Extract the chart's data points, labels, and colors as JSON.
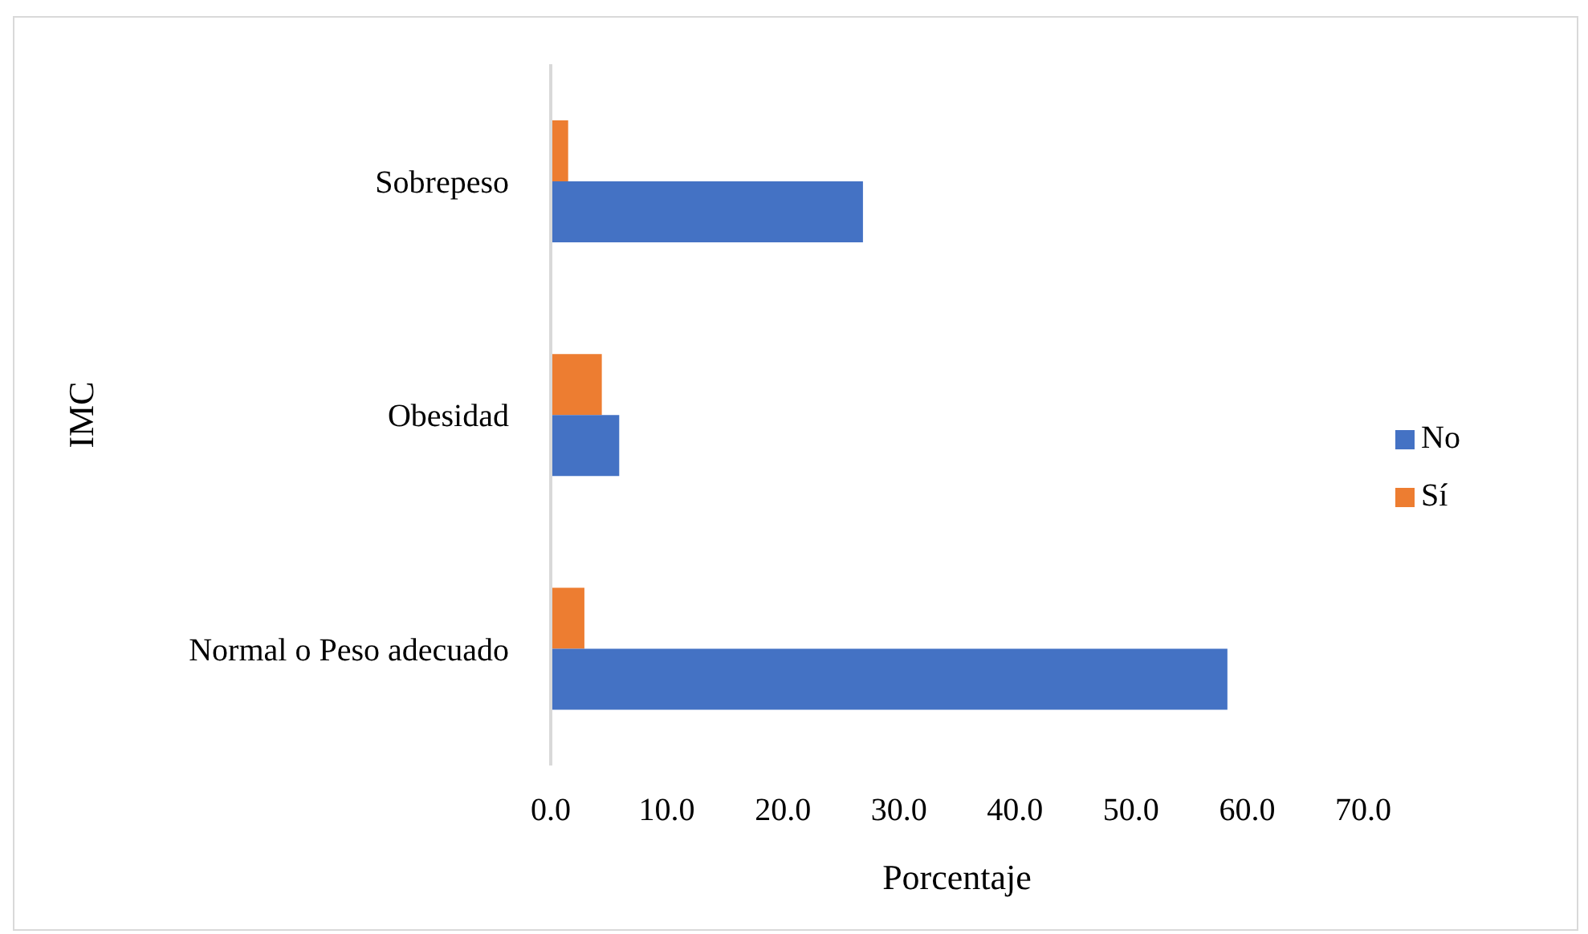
{
  "chart_data": {
    "type": "bar",
    "orientation": "horizontal",
    "xlabel": "Porcentaje",
    "ylabel": "IMC",
    "categories": [
      "Sobrepeso",
      "Obesidad",
      "Normal o Peso adecuado"
    ],
    "series": [
      {
        "name": "Sí",
        "color": "#ed7d31",
        "values": [
          1.5,
          4.4,
          2.9
        ]
      },
      {
        "name": "No",
        "color": "#4472c4",
        "values": [
          26.9,
          5.9,
          58.3
        ]
      }
    ],
    "xlim": [
      0,
      70
    ],
    "xticks": [
      {
        "value": 0,
        "label": "0.0"
      },
      {
        "value": 10,
        "label": "10.0"
      },
      {
        "value": 20,
        "label": "20.0"
      },
      {
        "value": 30,
        "label": "30.0"
      },
      {
        "value": 40,
        "label": "40.0"
      },
      {
        "value": 50,
        "label": "50.0"
      },
      {
        "value": 60,
        "label": "60.0"
      },
      {
        "value": 70,
        "label": "70.0"
      }
    ],
    "grid": false,
    "legend": "right"
  }
}
